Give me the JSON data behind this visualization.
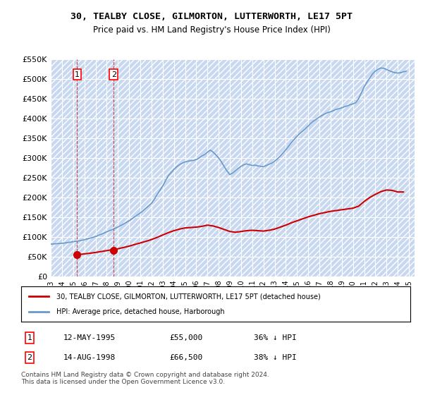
{
  "title": "30, TEALBY CLOSE, GILMORTON, LUTTERWORTH, LE17 5PT",
  "subtitle": "Price paid vs. HM Land Registry's House Price Index (HPI)",
  "xlabel": "",
  "ylabel": "",
  "ylim": [
    0,
    550000
  ],
  "yticks": [
    0,
    50000,
    100000,
    150000,
    200000,
    250000,
    300000,
    350000,
    400000,
    450000,
    500000,
    550000
  ],
  "ytick_labels": [
    "£0",
    "£50K",
    "£100K",
    "£150K",
    "£200K",
    "£250K",
    "£300K",
    "£350K",
    "£400K",
    "£450K",
    "£500K",
    "£550K"
  ],
  "xlim_start": 1993.0,
  "xlim_end": 2025.5,
  "transactions": [
    {
      "date_num": 1995.36,
      "price": 55000,
      "label": "1",
      "date_str": "12-MAY-1995",
      "pct": "36% ↓ HPI"
    },
    {
      "date_num": 1998.62,
      "price": 66500,
      "label": "2",
      "date_str": "14-AUG-1998",
      "pct": "38% ↓ HPI"
    }
  ],
  "hpi_line_color": "#6699cc",
  "property_line_color": "#cc0000",
  "transaction_marker_color": "#cc0000",
  "hpi_data_x": [
    1993.0,
    1993.25,
    1993.5,
    1993.75,
    1994.0,
    1994.25,
    1994.5,
    1994.75,
    1995.0,
    1995.25,
    1995.5,
    1995.75,
    1996.0,
    1996.25,
    1996.5,
    1996.75,
    1997.0,
    1997.25,
    1997.5,
    1997.75,
    1998.0,
    1998.25,
    1998.5,
    1998.75,
    1999.0,
    1999.25,
    1999.5,
    1999.75,
    2000.0,
    2000.25,
    2000.5,
    2000.75,
    2001.0,
    2001.25,
    2001.5,
    2001.75,
    2002.0,
    2002.25,
    2002.5,
    2002.75,
    2003.0,
    2003.25,
    2003.5,
    2003.75,
    2004.0,
    2004.25,
    2004.5,
    2004.75,
    2005.0,
    2005.25,
    2005.5,
    2005.75,
    2006.0,
    2006.25,
    2006.5,
    2006.75,
    2007.0,
    2007.25,
    2007.5,
    2007.75,
    2008.0,
    2008.25,
    2008.5,
    2008.75,
    2009.0,
    2009.25,
    2009.5,
    2009.75,
    2010.0,
    2010.25,
    2010.5,
    2010.75,
    2011.0,
    2011.25,
    2011.5,
    2011.75,
    2012.0,
    2012.25,
    2012.5,
    2012.75,
    2013.0,
    2013.25,
    2013.5,
    2013.75,
    2014.0,
    2014.25,
    2014.5,
    2014.75,
    2015.0,
    2015.25,
    2015.5,
    2015.75,
    2016.0,
    2016.25,
    2016.5,
    2016.75,
    2017.0,
    2017.25,
    2017.5,
    2017.75,
    2018.0,
    2018.25,
    2018.5,
    2018.75,
    2019.0,
    2019.25,
    2019.5,
    2019.75,
    2020.0,
    2020.25,
    2020.5,
    2020.75,
    2021.0,
    2021.25,
    2021.5,
    2021.75,
    2022.0,
    2022.25,
    2022.5,
    2022.75,
    2023.0,
    2023.25,
    2023.5,
    2023.75,
    2024.0,
    2024.25,
    2024.5,
    2024.75
  ],
  "hpi_data_y": [
    82000,
    82500,
    83000,
    83500,
    84000,
    85000,
    86000,
    87000,
    88000,
    89000,
    90000,
    91500,
    93000,
    95000,
    97000,
    99000,
    101000,
    104000,
    107000,
    110000,
    113000,
    116000,
    119000,
    122000,
    125000,
    129000,
    133000,
    137000,
    141000,
    146000,
    151000,
    156000,
    161000,
    167000,
    173000,
    179000,
    185000,
    196000,
    207000,
    218000,
    229000,
    242000,
    255000,
    263000,
    271000,
    278000,
    283000,
    287000,
    290000,
    292000,
    293000,
    294000,
    296000,
    300000,
    305000,
    309000,
    315000,
    320000,
    315000,
    308000,
    300000,
    290000,
    278000,
    267000,
    258000,
    262000,
    268000,
    274000,
    279000,
    283000,
    285000,
    283000,
    281000,
    282000,
    280000,
    279000,
    278000,
    281000,
    284000,
    287000,
    292000,
    298000,
    305000,
    313000,
    321000,
    330000,
    339000,
    347000,
    355000,
    362000,
    368000,
    374000,
    381000,
    388000,
    394000,
    399000,
    404000,
    408000,
    412000,
    415000,
    417000,
    420000,
    423000,
    425000,
    427000,
    430000,
    432000,
    435000,
    437000,
    440000,
    450000,
    465000,
    480000,
    492000,
    503000,
    513000,
    520000,
    525000,
    528000,
    527000,
    524000,
    521000,
    518000,
    516000,
    515000,
    516000,
    518000,
    520000
  ],
  "property_data_x": [
    1995.36,
    1995.5,
    1996.0,
    1996.5,
    1997.0,
    1997.5,
    1998.0,
    1998.5,
    1998.62,
    1999.0,
    1999.5,
    2000.0,
    2000.5,
    2001.0,
    2001.5,
    2002.0,
    2002.5,
    2003.0,
    2003.5,
    2004.0,
    2004.5,
    2005.0,
    2005.5,
    2006.0,
    2006.5,
    2007.0,
    2007.5,
    2008.0,
    2008.5,
    2009.0,
    2009.5,
    2010.0,
    2010.5,
    2011.0,
    2011.5,
    2012.0,
    2012.5,
    2013.0,
    2013.5,
    2014.0,
    2014.5,
    2015.0,
    2015.5,
    2016.0,
    2016.5,
    2017.0,
    2017.5,
    2018.0,
    2018.5,
    2019.0,
    2019.5,
    2020.0,
    2020.5,
    2021.0,
    2021.5,
    2022.0,
    2022.5,
    2023.0,
    2023.5,
    2024.0,
    2024.5
  ],
  "property_data_y": [
    55000,
    55600,
    57200,
    58900,
    60900,
    63200,
    65500,
    68000,
    66500,
    70300,
    73400,
    76900,
    81000,
    85000,
    89000,
    93500,
    99000,
    105000,
    111000,
    116000,
    120000,
    123000,
    124000,
    125000,
    127000,
    130000,
    128000,
    124000,
    119000,
    114000,
    112000,
    114000,
    116000,
    117000,
    116000,
    115000,
    117000,
    120000,
    125000,
    130000,
    136000,
    141000,
    146000,
    151000,
    155000,
    159000,
    162000,
    165000,
    167000,
    169000,
    171000,
    173000,
    178000,
    190000,
    200000,
    208000,
    215000,
    219000,
    218000,
    214000,
    214000
  ],
  "xticks": [
    1993,
    1994,
    1995,
    1996,
    1997,
    1998,
    1999,
    2000,
    2001,
    2002,
    2003,
    2004,
    2005,
    2006,
    2007,
    2008,
    2009,
    2010,
    2011,
    2012,
    2013,
    2014,
    2015,
    2016,
    2017,
    2018,
    2019,
    2020,
    2021,
    2022,
    2023,
    2024,
    2025
  ],
  "legend_entry1": "30, TEALBY CLOSE, GILMORTON, LUTTERWORTH, LE17 5PT (detached house)",
  "legend_entry2": "HPI: Average price, detached house, Harborough",
  "table_rows": [
    [
      "1",
      "12-MAY-1995",
      "£55,000",
      "36% ↓ HPI"
    ],
    [
      "2",
      "14-AUG-1998",
      "£66,500",
      "38% ↓ HPI"
    ]
  ],
  "footer": "Contains HM Land Registry data © Crown copyright and database right 2024.\nThis data is licensed under the Open Government Licence v3.0.",
  "bg_color": "#f0f4ff",
  "hatch_color": "#c8d8f0",
  "grid_color": "#ffffff"
}
